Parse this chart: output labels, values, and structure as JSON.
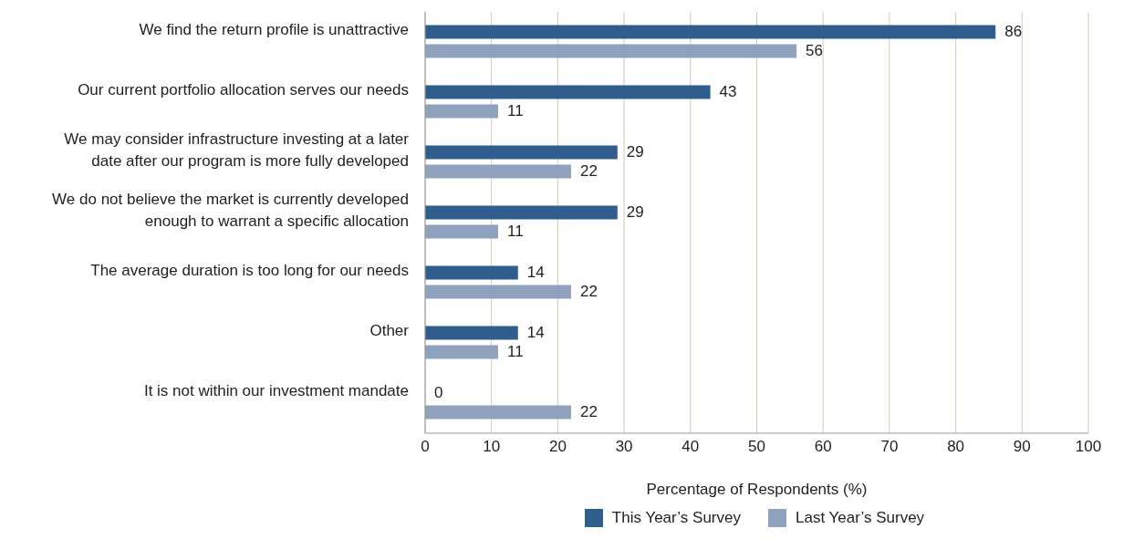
{
  "chart_data": {
    "type": "bar",
    "orientation": "horizontal",
    "xlabel": "Percentage of Respondents (%)",
    "categories": [
      "We find the return profile is unattractive",
      "Our current portfolio allocation serves our needs",
      "We may consider infrastructure investing at a later date after our program is more fully developed",
      "We do not believe the market is currently developed enough to warrant a specific allocation",
      "The average duration is too long for our needs",
      "Other",
      "It is not within our investment mandate"
    ],
    "series": [
      {
        "name": "This Year’s Survey",
        "color": "#2e5d8e",
        "values": [
          86,
          43,
          29,
          29,
          14,
          14,
          0
        ]
      },
      {
        "name": "Last Year’s Survey",
        "color": "#8ea2bd",
        "values": [
          56,
          11,
          22,
          11,
          22,
          11,
          22
        ]
      }
    ],
    "xlim": [
      0,
      100
    ],
    "xticks": [
      0,
      10,
      20,
      30,
      40,
      50,
      60,
      70,
      80,
      90,
      100
    ],
    "grid": "x",
    "legend": "bottom",
    "data_labels": true
  }
}
